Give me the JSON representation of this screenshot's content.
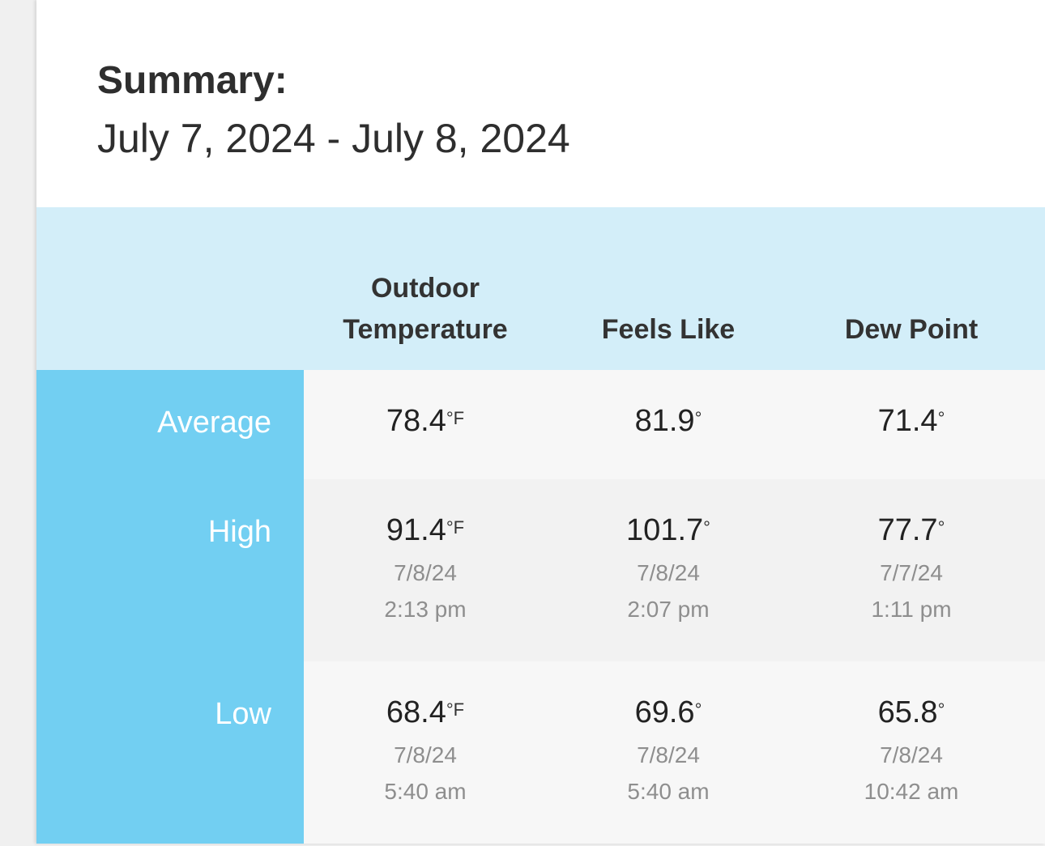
{
  "header": {
    "title": "Summary:",
    "date_range": "July 7, 2024 - July 8, 2024"
  },
  "table": {
    "columns": [
      "Outdoor Temperature",
      "Feels Like",
      "Dew Point"
    ],
    "rows": [
      {
        "label": "Average",
        "cells": [
          {
            "value": "78.4",
            "unit": "°F"
          },
          {
            "value": "81.9",
            "unit": "°"
          },
          {
            "value": "71.4",
            "unit": "°"
          }
        ]
      },
      {
        "label": "High",
        "cells": [
          {
            "value": "91.4",
            "unit": "°F",
            "date": "7/8/24",
            "time": "2:13 pm"
          },
          {
            "value": "101.7",
            "unit": "°",
            "date": "7/8/24",
            "time": "2:07 pm"
          },
          {
            "value": "77.7",
            "unit": "°",
            "date": "7/7/24",
            "time": "1:11 pm"
          }
        ]
      },
      {
        "label": "Low",
        "cells": [
          {
            "value": "68.4",
            "unit": "°F",
            "date": "7/8/24",
            "time": "5:40 am"
          },
          {
            "value": "69.6",
            "unit": "°",
            "date": "7/8/24",
            "time": "5:40 am"
          },
          {
            "value": "65.8",
            "unit": "°",
            "date": "7/8/24",
            "time": "10:42 am"
          }
        ]
      }
    ]
  }
}
